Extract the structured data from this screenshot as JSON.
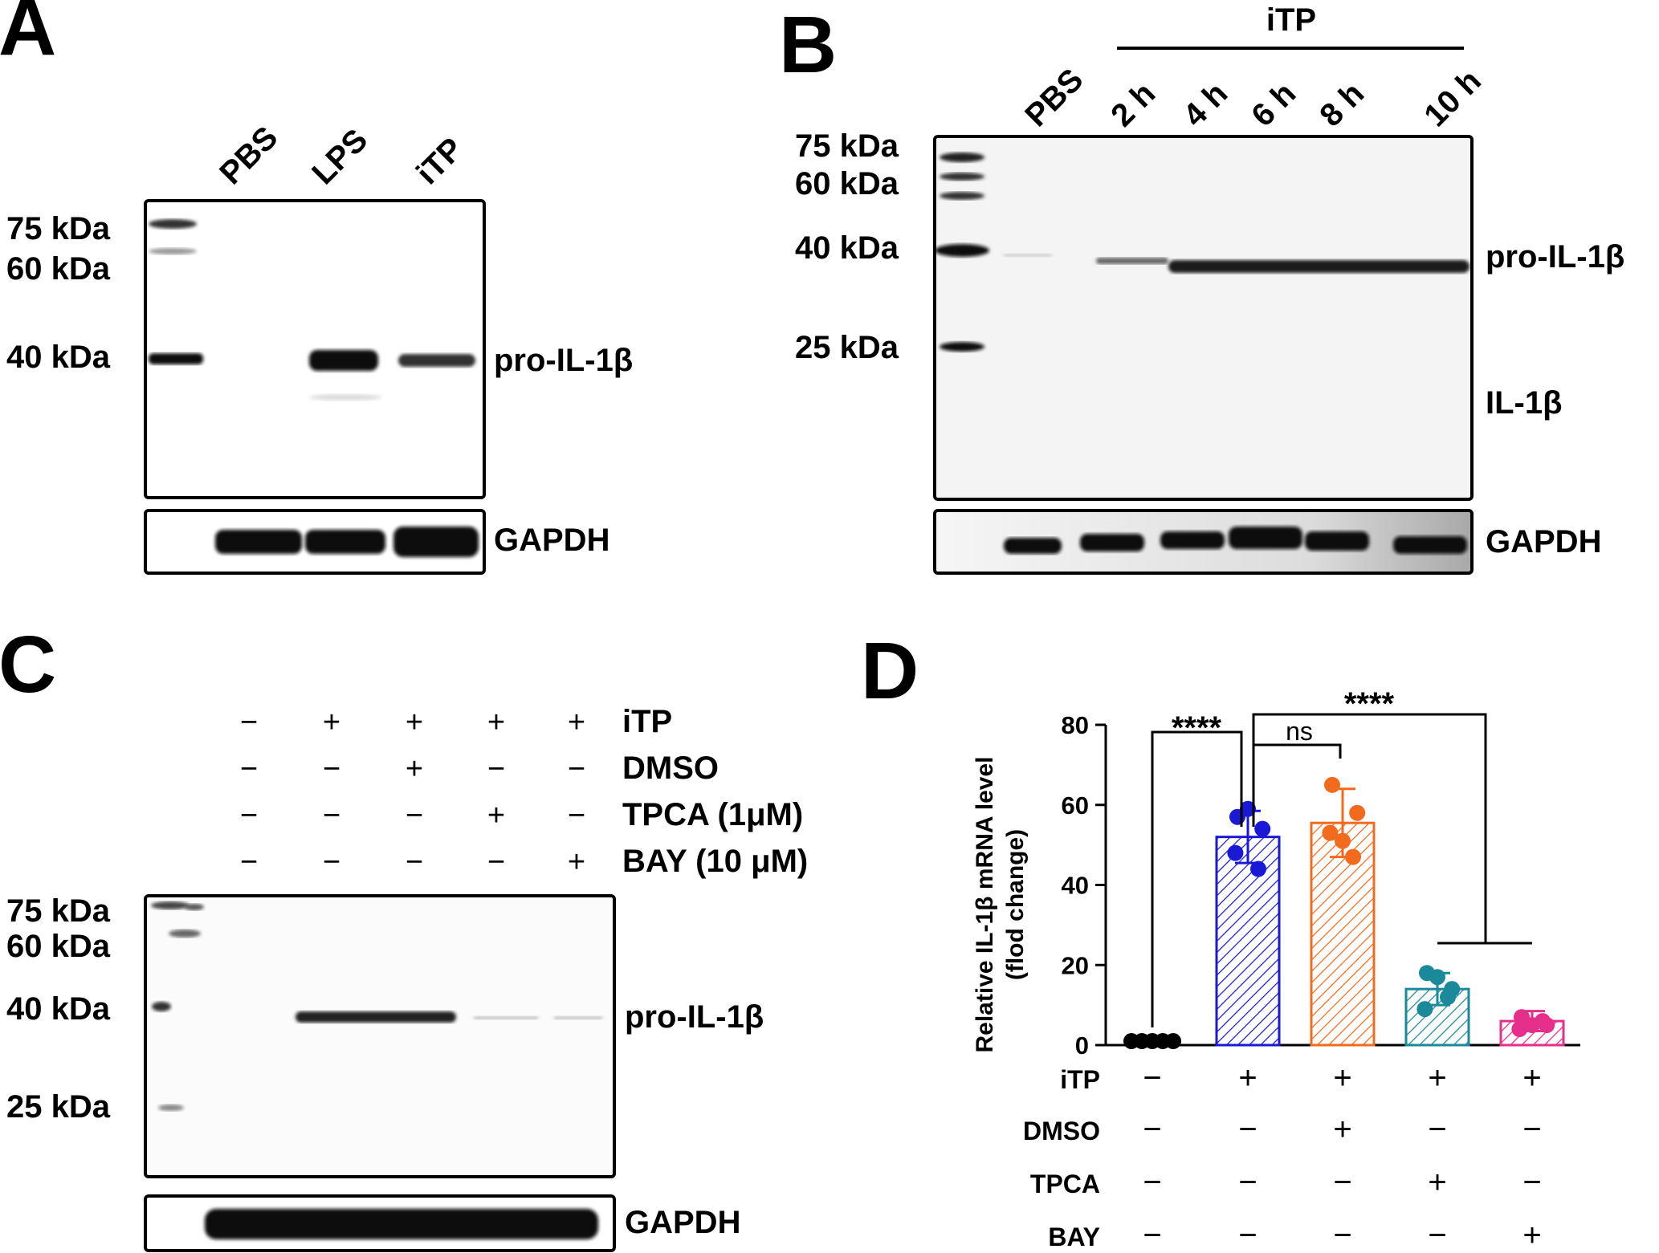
{
  "panels": {
    "A": {
      "letter": "A",
      "lanes": [
        "PBS",
        "LPS",
        "iTP"
      ],
      "markers": [
        "75 kDa",
        "60 kDa",
        "40 kDa"
      ],
      "band_label": "pro-IL-1β",
      "loading_label": "GAPDH"
    },
    "B": {
      "letter": "B",
      "group_label": "iTP",
      "lanes": [
        "PBS",
        "2 h",
        "4 h",
        "6 h",
        "8 h",
        "10 h"
      ],
      "markers": [
        "75 kDa",
        "60 kDa",
        "40 kDa",
        "25 kDa"
      ],
      "band_label": "pro-IL-1β",
      "band_label_2": "IL-1β",
      "loading_label": "GAPDH"
    },
    "C": {
      "letter": "C",
      "rows": [
        {
          "label": "iTP",
          "signs": [
            "−",
            "+",
            "+",
            "+",
            "+"
          ]
        },
        {
          "label": "DMSO",
          "signs": [
            "−",
            "−",
            "+",
            "−",
            "−"
          ]
        },
        {
          "label": "TPCA (1μM)",
          "signs": [
            "−",
            "−",
            "−",
            "+",
            "−"
          ]
        },
        {
          "label": "BAY (10 μM)",
          "signs": [
            "−",
            "−",
            "−",
            "−",
            "+"
          ]
        }
      ],
      "markers": [
        "75 kDa",
        "60 kDa",
        "40 kDa",
        "25 kDa"
      ],
      "band_label": "pro-IL-1β",
      "loading_label": "GAPDH"
    },
    "D": {
      "letter": "D",
      "treatment_rows": [
        {
          "label": "iTP",
          "signs": [
            "−",
            "+",
            "+",
            "+",
            "+"
          ]
        },
        {
          "label": "DMSO",
          "signs": [
            "−",
            "−",
            "+",
            "−",
            "−"
          ]
        },
        {
          "label": "TPCA",
          "signs": [
            "−",
            "−",
            "−",
            "+",
            "−"
          ]
        },
        {
          "label": "BAY",
          "signs": [
            "−",
            "−",
            "−",
            "−",
            "+"
          ]
        }
      ],
      "significance": [
        "****",
        "ns",
        "****"
      ]
    }
  },
  "chart_data": {
    "type": "bar",
    "ylabel": "Relative IL-1β mRNA level",
    "ylabel_2": "(flod change)",
    "ylim": [
      0,
      80
    ],
    "yticks": [
      0,
      20,
      40,
      60,
      80
    ],
    "categories": [
      "PBS",
      "iTP",
      "iTP+DMSO",
      "iTP+TPCA",
      "iTP+BAY"
    ],
    "values": [
      1,
      52,
      55.5,
      14,
      6
    ],
    "errors": [
      0,
      6.5,
      8.5,
      4,
      2.5
    ],
    "points": [
      [
        1,
        1,
        1,
        1,
        1
      ],
      [
        57,
        54,
        48,
        44,
        59
      ],
      [
        65,
        58,
        53,
        47,
        51
      ],
      [
        18,
        14,
        9,
        12,
        17
      ],
      [
        7,
        5,
        4,
        6,
        5
      ]
    ],
    "colors": [
      "#000000",
      "#1a1ad6",
      "#f26b1d",
      "#1a8a9a",
      "#e52f8a"
    ],
    "grid": false,
    "legend": "none"
  }
}
